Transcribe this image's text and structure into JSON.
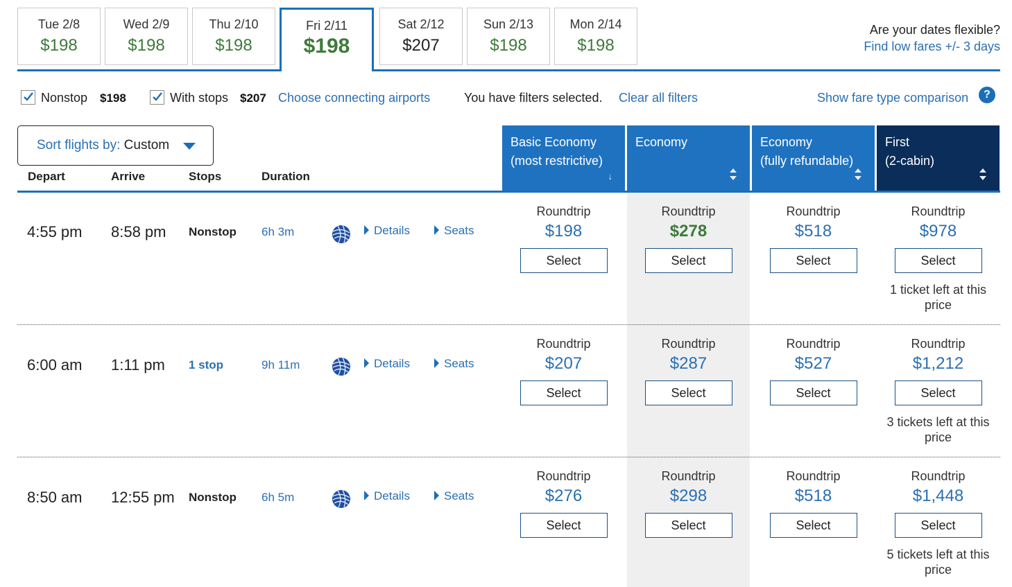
{
  "date_tabs": [
    {
      "day": "Tue 2/8",
      "price": "$198"
    },
    {
      "day": "Wed 2/9",
      "price": "$198"
    },
    {
      "day": "Thu 2/10",
      "price": "$198"
    },
    {
      "day": "Fri 2/11",
      "price": "$198"
    },
    {
      "day": "Sat 2/12",
      "price": "$207"
    },
    {
      "day": "Sun 2/13",
      "price": "$198"
    },
    {
      "day": "Mon 2/14",
      "price": "$198"
    }
  ],
  "flexible": {
    "question": "Are your dates flexible?",
    "link": "Find low fares +/- 3 days"
  },
  "filters": {
    "nonstop_label": "Nonstop",
    "nonstop_price": "$198",
    "withstops_label": "With stops",
    "withstops_price": "$207",
    "connecting": "Choose connecting airports",
    "selected_msg": "You have filters selected.",
    "clear": "Clear all filters",
    "compare": "Show fare type comparison",
    "help": "?"
  },
  "sort": {
    "label": "Sort flights by:",
    "value": "Custom"
  },
  "columns": {
    "depart": "Depart",
    "arrive": "Arrive",
    "stops": "Stops",
    "duration": "Duration"
  },
  "fare_types": [
    {
      "line1": "Basic Economy",
      "line2": "(most restrictive)"
    },
    {
      "line1": "Economy",
      "line2": ""
    },
    {
      "line1": "Economy",
      "line2": "(fully refundable)"
    },
    {
      "line1": "First",
      "line2": "(2-cabin)"
    }
  ],
  "details_label": "Details",
  "seats_label": "Seats",
  "roundtrip_label": "Roundtrip",
  "select_label": "Select",
  "flights": [
    {
      "depart": "4:55 pm",
      "arrive": "8:58 pm",
      "stops": "Nonstop",
      "duration": "6h 3m",
      "fares": [
        "$198",
        "$278",
        "$518",
        "$978"
      ],
      "note": "1 ticket left at this price"
    },
    {
      "depart": "6:00 am",
      "arrive": "1:11 pm",
      "stops": "1 stop",
      "duration": "9h 11m",
      "fares": [
        "$207",
        "$287",
        "$527",
        "$1,212"
      ],
      "note": "3 tickets left at this price"
    },
    {
      "depart": "8:50 am",
      "arrive": "12:55 pm",
      "stops": "Nonstop",
      "duration": "6h 5m",
      "fares": [
        "$276",
        "$298",
        "$518",
        "$1,448"
      ],
      "note": "5 tickets left at this price"
    }
  ],
  "colors": {
    "brand_blue": "#1f72c0",
    "link_blue": "#2b6fb2",
    "first_navy": "#0a2d5a",
    "price_green": "#3e7a3a"
  }
}
